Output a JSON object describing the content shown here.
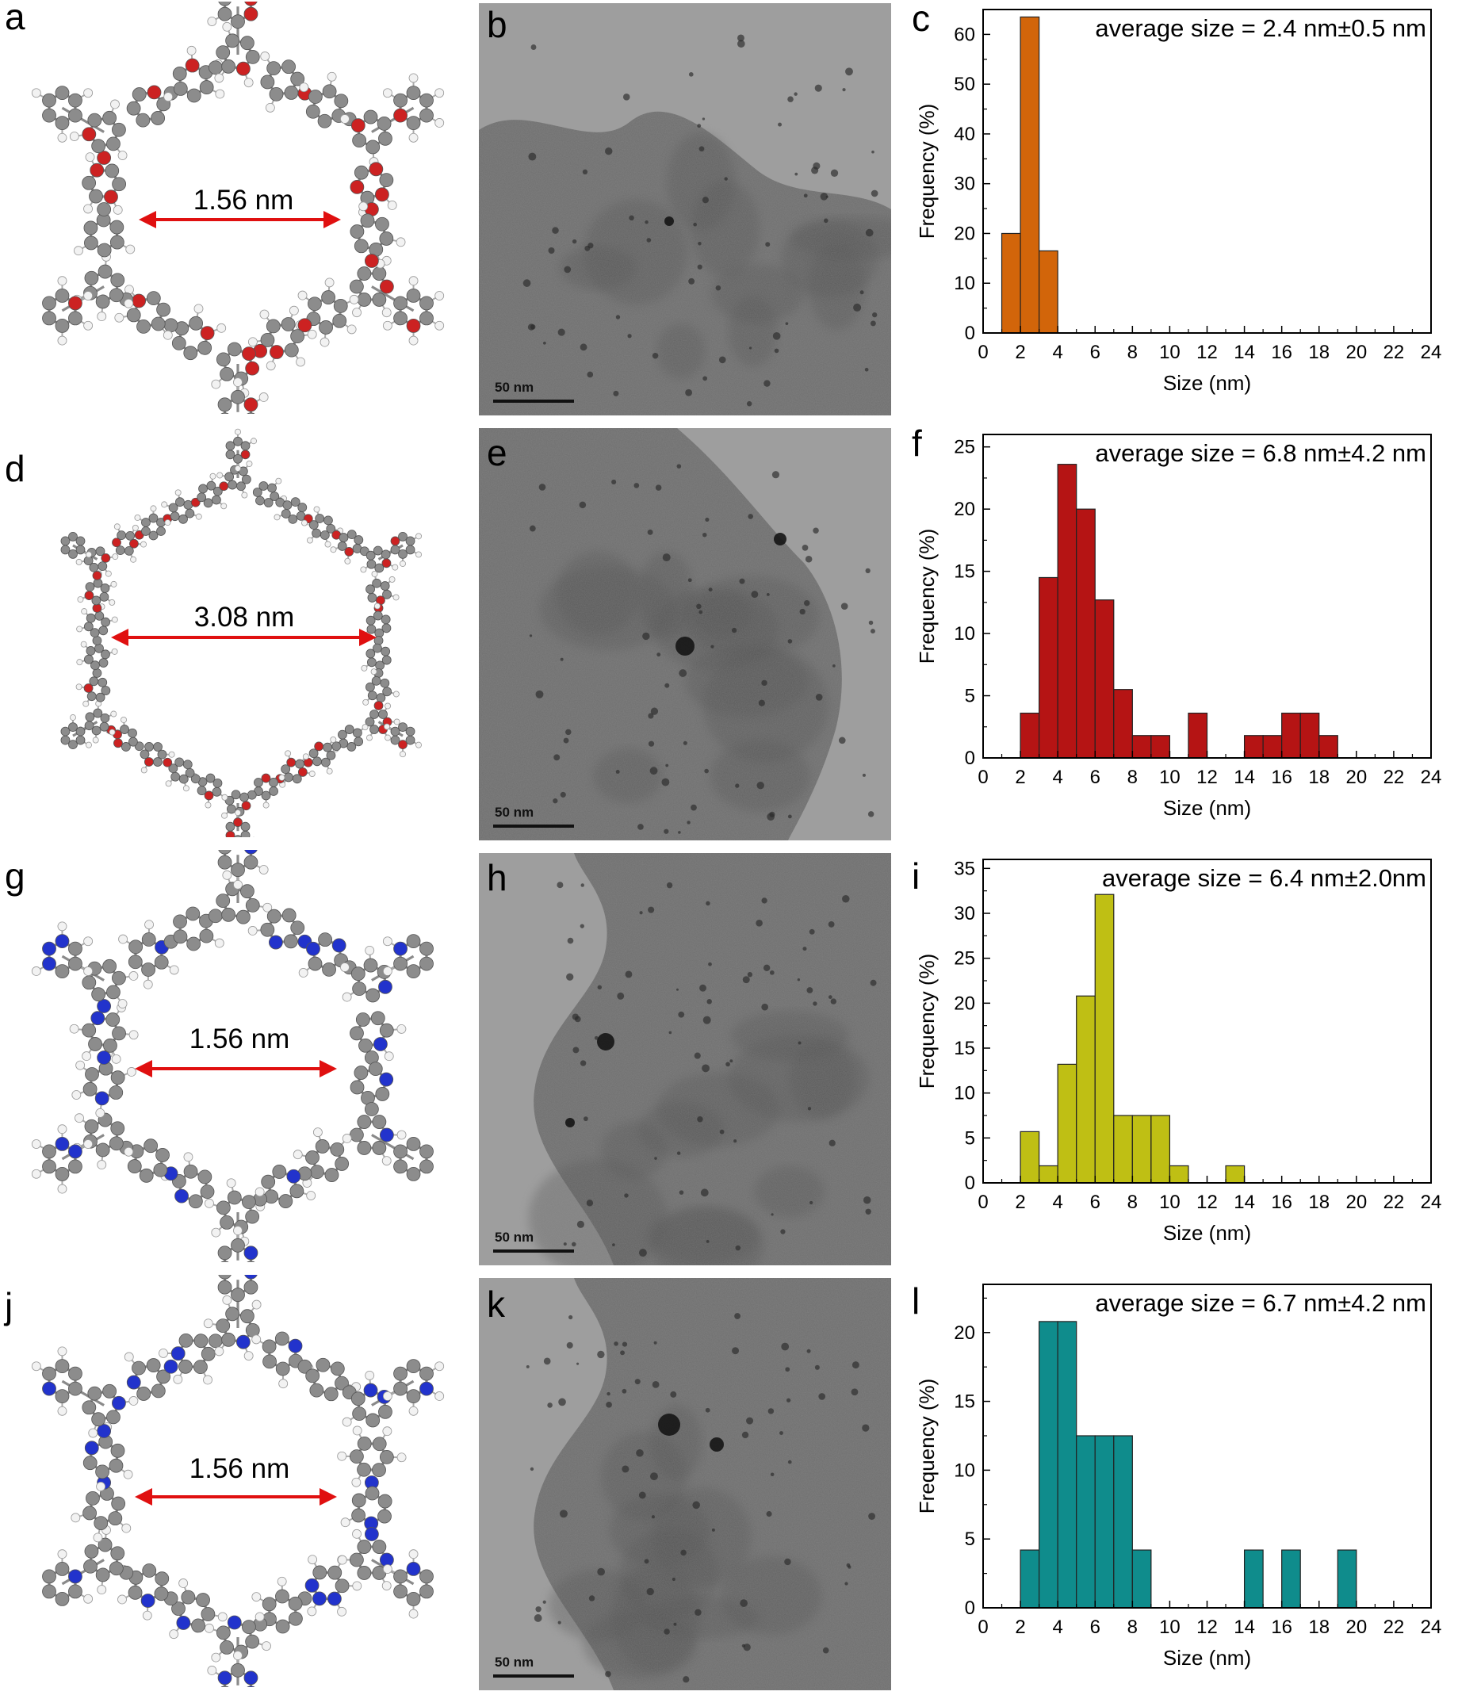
{
  "panels": [
    {
      "struct_letter": "a",
      "tem_letter": "b",
      "hist_letter": "c",
      "pore_size": "1.56 nm",
      "scale_bar": "50 nm",
      "hetero_color": "#cc2222"
    },
    {
      "struct_letter": "d",
      "tem_letter": "e",
      "hist_letter": "f",
      "pore_size": "3.08 nm",
      "scale_bar": "50 nm",
      "hetero_color": "#cc2222"
    },
    {
      "struct_letter": "g",
      "tem_letter": "h",
      "hist_letter": "i",
      "pore_size": "1.56 nm",
      "scale_bar": "50 nm",
      "hetero_color": "#2233cc"
    },
    {
      "struct_letter": "j",
      "tem_letter": "k",
      "hist_letter": "l",
      "pore_size": "1.56 nm",
      "scale_bar": "50 nm",
      "hetero_color": "#2233cc"
    }
  ],
  "chart_data": [
    {
      "type": "bar",
      "annotation": "average size = 2.4 nm±0.5 nm",
      "xlabel": "Size (nm)",
      "ylabel": "Frequency (%)",
      "xlim": [
        0,
        24
      ],
      "ylim": [
        0,
        65
      ],
      "xticks": [
        "0",
        "2",
        "4",
        "6",
        "8",
        "10",
        "12",
        "14",
        "16",
        "18",
        "20",
        "22",
        "24"
      ],
      "yticks": [
        "0",
        "10",
        "20",
        "30",
        "40",
        "50",
        "60"
      ],
      "ytick_values": [
        0,
        10,
        20,
        30,
        40,
        50,
        60
      ],
      "color": "#d2650a",
      "bins": [
        [
          1,
          2,
          20
        ],
        [
          2,
          3,
          63.5
        ],
        [
          3,
          4,
          16.5
        ]
      ]
    },
    {
      "type": "bar",
      "annotation": "average size = 6.8 nm±4.2 nm",
      "xlabel": "Size (nm)",
      "ylabel": "Frequency (%)",
      "xlim": [
        0,
        24
      ],
      "ylim": [
        0,
        26
      ],
      "xticks": [
        "0",
        "2",
        "4",
        "6",
        "8",
        "10",
        "12",
        "14",
        "16",
        "18",
        "20",
        "22",
        "24"
      ],
      "yticks": [
        "0",
        "5",
        "10",
        "15",
        "20",
        "25"
      ],
      "ytick_values": [
        0,
        5,
        10,
        15,
        20,
        25
      ],
      "color": "#b51414",
      "bins": [
        [
          2,
          3,
          3.6
        ],
        [
          3,
          4,
          14.5
        ],
        [
          4,
          5,
          23.6
        ],
        [
          5,
          6,
          20
        ],
        [
          6,
          7,
          12.7
        ],
        [
          7,
          8,
          5.5
        ],
        [
          8,
          9,
          1.8
        ],
        [
          9,
          10,
          1.8
        ],
        [
          11,
          12,
          3.6
        ],
        [
          14,
          15,
          1.8
        ],
        [
          15,
          16,
          1.8
        ],
        [
          16,
          17,
          3.6
        ],
        [
          17,
          18,
          3.6
        ],
        [
          18,
          19,
          1.8
        ]
      ]
    },
    {
      "type": "bar",
      "annotation": "average size = 6.4 nm±2.0nm",
      "xlabel": "Size (nm)",
      "ylabel": "Frequency (%)",
      "xlim": [
        0,
        24
      ],
      "ylim": [
        0,
        36
      ],
      "xticks": [
        "0",
        "2",
        "4",
        "6",
        "8",
        "10",
        "12",
        "14",
        "16",
        "18",
        "20",
        "22",
        "24"
      ],
      "yticks": [
        "0",
        "5",
        "10",
        "15",
        "20",
        "25",
        "30",
        "35"
      ],
      "ytick_values": [
        0,
        5,
        10,
        15,
        20,
        25,
        30,
        35
      ],
      "color": "#bfbf14",
      "bins": [
        [
          2,
          3,
          5.7
        ],
        [
          3,
          4,
          1.9
        ],
        [
          4,
          5,
          13.2
        ],
        [
          5,
          6,
          20.8
        ],
        [
          6,
          7,
          32.1
        ],
        [
          7,
          8,
          7.5
        ],
        [
          8,
          9,
          7.5
        ],
        [
          9,
          10,
          7.5
        ],
        [
          10,
          11,
          1.9
        ],
        [
          13,
          14,
          1.9
        ]
      ]
    },
    {
      "type": "bar",
      "annotation": "average size = 6.7 nm±4.2 nm",
      "xlabel": "Size (nm)",
      "ylabel": "Frequency (%)",
      "xlim": [
        0,
        24
      ],
      "ylim": [
        0,
        23.5
      ],
      "xticks": [
        "0",
        "2",
        "4",
        "6",
        "8",
        "10",
        "12",
        "14",
        "16",
        "18",
        "20",
        "22",
        "24"
      ],
      "yticks": [
        "0",
        "5",
        "10",
        "15",
        "20"
      ],
      "ytick_values": [
        0,
        5,
        10,
        15,
        20
      ],
      "color": "#0f8c8c",
      "bins": [
        [
          2,
          3,
          4.2
        ],
        [
          3,
          4,
          20.8
        ],
        [
          4,
          5,
          20.8
        ],
        [
          5,
          6,
          12.5
        ],
        [
          6,
          7,
          12.5
        ],
        [
          7,
          8,
          12.5
        ],
        [
          8,
          9,
          4.2
        ],
        [
          14,
          15,
          4.2
        ],
        [
          16,
          17,
          4.2
        ],
        [
          19,
          20,
          4.2
        ]
      ]
    }
  ]
}
